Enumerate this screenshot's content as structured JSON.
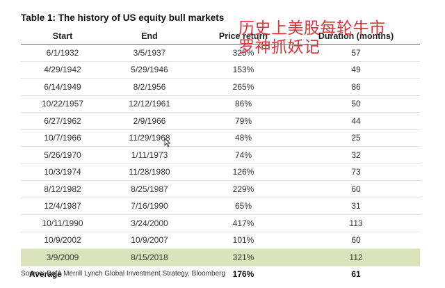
{
  "title": "Table 1: The history of US equity bull markets",
  "overlay_text": "历史上美股每轮牛市\n罗神抓妖记",
  "columns": [
    "Start",
    "End",
    "Price return",
    "Duration (months)"
  ],
  "rows": [
    {
      "start": "6/1/1932",
      "end": "3/5/1937",
      "price_return": "325%",
      "duration": "57"
    },
    {
      "start": "4/29/1942",
      "end": "5/29/1946",
      "price_return": "153%",
      "duration": "49"
    },
    {
      "start": "6/14/1949",
      "end": "8/2/1956",
      "price_return": "265%",
      "duration": "86"
    },
    {
      "start": "10/22/1957",
      "end": "12/12/1961",
      "price_return": "86%",
      "duration": "50"
    },
    {
      "start": "6/27/1962",
      "end": "2/9/1966",
      "price_return": "79%",
      "duration": "44"
    },
    {
      "start": "10/7/1966",
      "end": "11/29/1968",
      "price_return": "48%",
      "duration": "25"
    },
    {
      "start": "5/26/1970",
      "end": "1/11/1973",
      "price_return": "74%",
      "duration": "32"
    },
    {
      "start": "10/3/1974",
      "end": "11/28/1980",
      "price_return": "126%",
      "duration": "73"
    },
    {
      "start": "8/12/1982",
      "end": "8/25/1987",
      "price_return": "229%",
      "duration": "60"
    },
    {
      "start": "12/4/1987",
      "end": "7/16/1990",
      "price_return": "65%",
      "duration": "31"
    },
    {
      "start": "10/11/1990",
      "end": "3/24/2000",
      "price_return": "417%",
      "duration": "113"
    },
    {
      "start": "10/9/2002",
      "end": "10/9/2007",
      "price_return": "101%",
      "duration": "60"
    },
    {
      "start": "3/9/2009",
      "end": "8/15/2018",
      "price_return": "321%",
      "duration": "112",
      "highlight": true
    }
  ],
  "average": {
    "label": "Average",
    "price_return": "176%",
    "duration": "61"
  },
  "source": "Source: BofA Merrill Lynch Global Investment Strategy, Bloomberg",
  "colors": {
    "highlight_row": "#d9e4bb",
    "overlay_text": "#e0303a"
  }
}
